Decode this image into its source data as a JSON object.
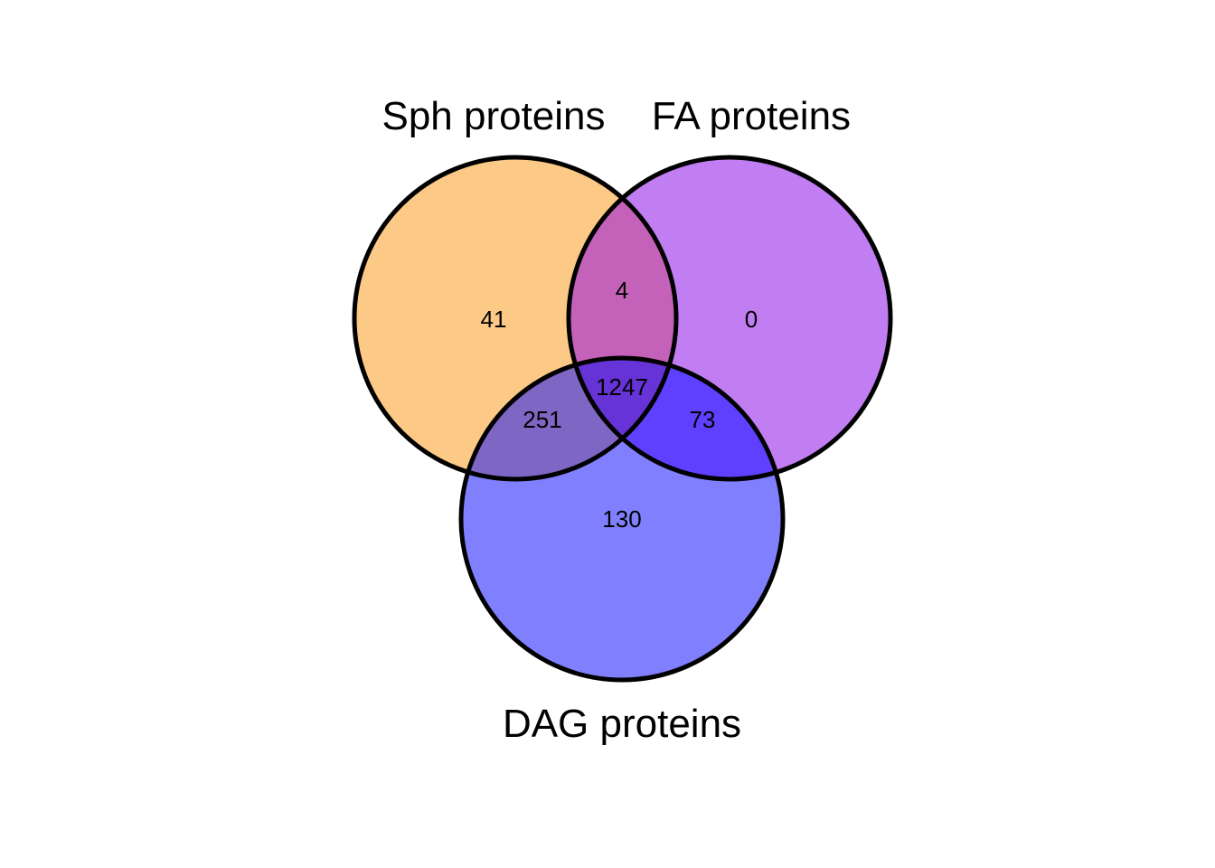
{
  "sets": [
    {
      "key": "sph",
      "label": "Sph proteins",
      "color": "#fb9a29"
    },
    {
      "key": "fa",
      "label": "FA proteins",
      "color": "#8a00e0"
    },
    {
      "key": "dag",
      "label": "DAG proteins",
      "color": "#0000ff"
    }
  ],
  "regions": {
    "sph_only": "41",
    "fa_only": "0",
    "dag_only": "130",
    "sph_fa": "4",
    "sph_dag": "251",
    "fa_dag": "73",
    "all_three": "1247"
  },
  "colors": {
    "sph_fill": "#fcc986",
    "fa_fill": "#c17ef2",
    "dag_fill": "#8080ff",
    "sph_fa_fill": "#c461b8",
    "sph_dag_fill": "#7e66c4",
    "fa_dag_fill": "#6040ff",
    "all_fill": "#6633d6",
    "outline": "#000000"
  }
}
